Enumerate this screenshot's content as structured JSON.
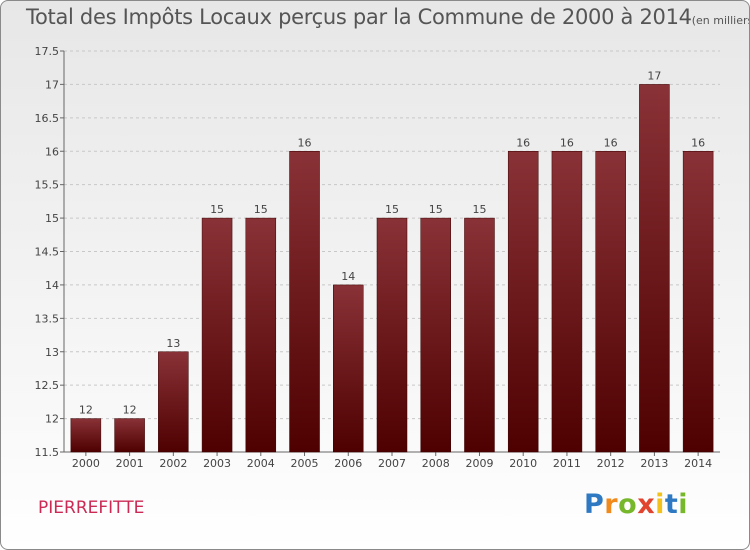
{
  "header": {
    "title": "Total des Impôts Locaux perçus par la Commune de 2000 à 2014",
    "unit": "(en milliers d'€)"
  },
  "footer": {
    "commune": "PIERREFITTE",
    "logo_letters": [
      "P",
      "r",
      "o",
      "x",
      "i",
      "t",
      "i"
    ],
    "logo_colors": [
      "#2e79c2",
      "#f08a1c",
      "#77b72c",
      "#e2432e",
      "#f2c21b",
      "#2e79c2",
      "#77b72c"
    ]
  },
  "colors": {
    "bar_top": "#893237",
    "bar_bottom": "#4e0000",
    "grid": "#c8c8c8"
  },
  "chart_data": {
    "type": "bar",
    "title": "Total des Impôts Locaux perçus par la Commune de 2000 à 2014",
    "xlabel": "",
    "ylabel": "",
    "categories": [
      "2000",
      "2001",
      "2002",
      "2003",
      "2004",
      "2005",
      "2006",
      "2007",
      "2008",
      "2009",
      "2010",
      "2011",
      "2012",
      "2013",
      "2014"
    ],
    "values": [
      12,
      12,
      13,
      15,
      15,
      16,
      14,
      15,
      15,
      15,
      16,
      16,
      16,
      17,
      16
    ],
    "data_labels": [
      "12",
      "12",
      "13",
      "15",
      "15",
      "16",
      "14",
      "15",
      "15",
      "15",
      "16",
      "16",
      "16",
      "17",
      "16"
    ],
    "ylim": [
      11.5,
      17.5
    ],
    "yticks": [
      11.5,
      12,
      12.5,
      13,
      13.5,
      14,
      14.5,
      15,
      15.5,
      16,
      16.5,
      17,
      17.5
    ],
    "ytick_labels": [
      "11.5",
      "12",
      "12.5",
      "13",
      "13.5",
      "14",
      "14.5",
      "15",
      "15.5",
      "16",
      "16.5",
      "17",
      "17.5"
    ],
    "grid": true
  }
}
